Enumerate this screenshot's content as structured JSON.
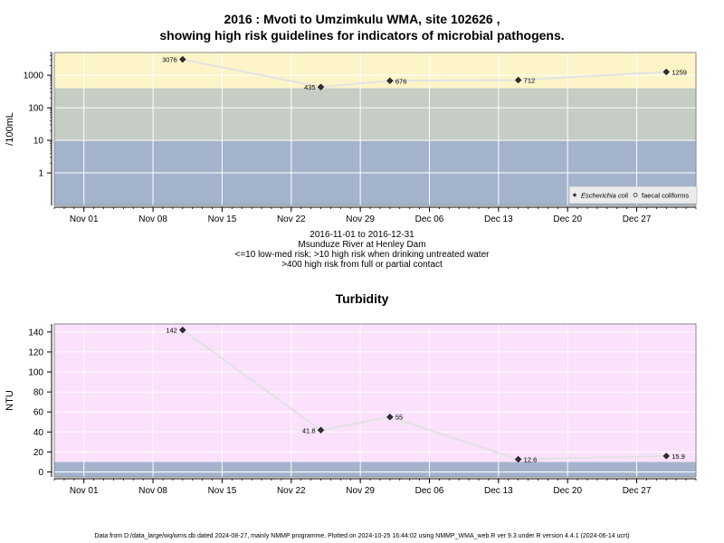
{
  "page": {
    "title_line1": "2016 : Mvoti to Umzimkulu WMA, site 102626 ,",
    "title_line2": "showing high risk guidelines for indicators of microbial pathogens.",
    "caption_line1": "2016-11-01 to 2016-12-31",
    "caption_line2": "Msunduze River at Henley Dam",
    "caption_line3": "<=10 low-med risk; >10 high risk when drinking untreated water",
    "caption_line4": ">400 high risk from full or partial contact",
    "footer": "Data from D:/data_large/wq/wms.db dated 2024-08-27, mainly NMMP programme. Plotted on 2024-10-25 16:44:02 using NMMP_WMA_web.R ver 9.3 under R version 4.4.1 (2024-06-14 ucrt)"
  },
  "colors": {
    "band_low": "#a3b3cc",
    "band_mid": "#c5cdc4",
    "band_high": "#fdf5c8",
    "band_turbidity": "#fbe1fb",
    "grid": "#ffffff",
    "line": "#e2e2e2",
    "marker": "#333333"
  },
  "chart_data": [
    {
      "type": "line",
      "title": "",
      "ylabel": "/100mL",
      "xlabel": "",
      "y_scale": "log10",
      "x_ticks": [
        "Nov 01",
        "Nov 08",
        "Nov 15",
        "Nov 22",
        "Nov 29",
        "Dec 06",
        "Dec 13",
        "Dec 20",
        "Dec 27"
      ],
      "x_tick_dates": [
        "2016-11-01",
        "2016-11-08",
        "2016-11-15",
        "2016-11-22",
        "2016-11-29",
        "2016-12-06",
        "2016-12-13",
        "2016-12-20",
        "2016-12-27"
      ],
      "y_ticks": [
        "1",
        "10",
        "100",
        "1000"
      ],
      "y_tick_values": [
        1,
        10,
        100,
        1000
      ],
      "xlim": [
        "2016-10-29",
        "2017-01-02"
      ],
      "ylim": [
        0.1,
        5000
      ],
      "bands": [
        {
          "from": 0.1,
          "to": 10,
          "color": "#a3b3cc"
        },
        {
          "from": 10,
          "to": 400,
          "color": "#c5cdc4"
        },
        {
          "from": 400,
          "to": 5000,
          "color": "#fdf5c8"
        }
      ],
      "grid": true,
      "legend_position": "bottom-right",
      "legend": [
        {
          "label": "Escherichia coli",
          "marker": "diamond",
          "italic": true
        },
        {
          "label": "faecal coliforms",
          "marker": "circle-open",
          "italic": false
        }
      ],
      "series": [
        {
          "name": "Escherichia coli",
          "points": [
            {
              "x": "2016-11-11",
              "y": 3076,
              "label": "3076",
              "label_side": "left"
            },
            {
              "x": "2016-11-25",
              "y": 435,
              "label": "435",
              "label_side": "left"
            },
            {
              "x": "2016-12-02",
              "y": 676,
              "label": "676",
              "label_side": "right"
            },
            {
              "x": "2016-12-15",
              "y": 712,
              "label": "712",
              "label_side": "right"
            },
            {
              "x": "2016-12-30",
              "y": 1259,
              "label": "1259",
              "label_side": "right"
            }
          ]
        }
      ]
    },
    {
      "type": "line",
      "title": "Turbidity",
      "ylabel": "NTU",
      "xlabel": "",
      "y_scale": "linear",
      "x_ticks": [
        "Nov 01",
        "Nov 08",
        "Nov 15",
        "Nov 22",
        "Nov 29",
        "Dec 06",
        "Dec 13",
        "Dec 20",
        "Dec 27"
      ],
      "x_tick_dates": [
        "2016-11-01",
        "2016-11-08",
        "2016-11-15",
        "2016-11-22",
        "2016-11-29",
        "2016-12-06",
        "2016-12-13",
        "2016-12-20",
        "2016-12-27"
      ],
      "y_ticks": [
        "0",
        "20",
        "40",
        "60",
        "80",
        "100",
        "120",
        "140"
      ],
      "y_tick_values": [
        0,
        20,
        40,
        60,
        80,
        100,
        120,
        140
      ],
      "xlim": [
        "2016-10-29",
        "2017-01-02"
      ],
      "ylim": [
        -5,
        148
      ],
      "bands": [
        {
          "from": -5,
          "to": 10,
          "color": "#a3b3cc"
        },
        {
          "from": 10,
          "to": 148,
          "color": "#fbe1fb"
        }
      ],
      "grid": true,
      "series": [
        {
          "name": "",
          "points": [
            {
              "x": "2016-11-11",
              "y": 142,
              "label": "142",
              "label_side": "left"
            },
            {
              "x": "2016-11-25",
              "y": 41.8,
              "label": "41.8",
              "label_side": "left"
            },
            {
              "x": "2016-12-02",
              "y": 55,
              "label": "55",
              "label_side": "right"
            },
            {
              "x": "2016-12-15",
              "y": 12.6,
              "label": "12.6",
              "label_side": "right"
            },
            {
              "x": "2016-12-30",
              "y": 15.9,
              "label": "15.9",
              "label_side": "right"
            }
          ]
        }
      ]
    }
  ]
}
